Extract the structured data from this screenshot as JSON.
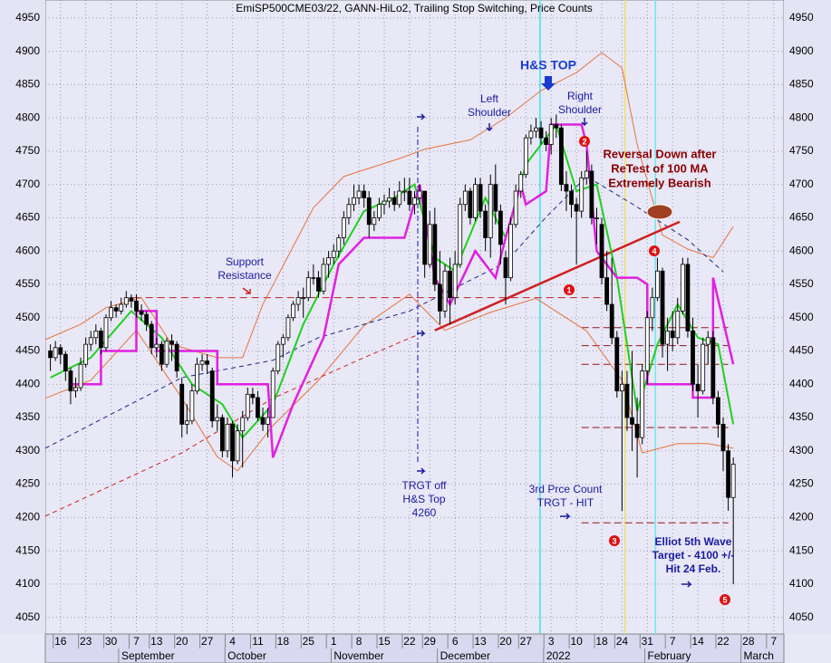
{
  "chart_data": {
    "type": "candlestick",
    "title": "EmiSP500CME03/22, GANN-HiLo2, Trailing Stop Switching, Price Counts",
    "ylim": [
      4025,
      4977
    ],
    "yticks": [
      4050,
      4100,
      4150,
      4200,
      4250,
      4300,
      4350,
      4400,
      4450,
      4500,
      4550,
      4600,
      4650,
      4700,
      4750,
      4800,
      4850,
      4900,
      4950
    ],
    "xlim": [
      -1,
      145
    ],
    "xticks": [
      {
        "value": 2,
        "label": "16"
      },
      {
        "value": 7,
        "label": "23"
      },
      {
        "value": 12,
        "label": "30"
      },
      {
        "value": 17,
        "label": "7"
      },
      {
        "value": 21,
        "label": "13"
      },
      {
        "value": 26,
        "label": "20"
      },
      {
        "value": 31,
        "label": "27"
      },
      {
        "value": 36,
        "label": "4"
      },
      {
        "value": 41,
        "label": "11"
      },
      {
        "value": 46,
        "label": "18"
      },
      {
        "value": 51,
        "label": "25"
      },
      {
        "value": 56,
        "label": "1"
      },
      {
        "value": 61,
        "label": "8"
      },
      {
        "value": 66,
        "label": "15"
      },
      {
        "value": 71,
        "label": "22"
      },
      {
        "value": 75,
        "label": "29"
      },
      {
        "value": 80,
        "label": "6"
      },
      {
        "value": 85,
        "label": "13"
      },
      {
        "value": 90,
        "label": "20"
      },
      {
        "value": 94,
        "label": "27"
      },
      {
        "value": 99,
        "label": "3"
      },
      {
        "value": 104,
        "label": "10"
      },
      {
        "value": 109,
        "label": "18"
      },
      {
        "value": 113,
        "label": "24"
      },
      {
        "value": 118,
        "label": "31"
      },
      {
        "value": 123,
        "label": "7"
      },
      {
        "value": 128,
        "label": "14"
      },
      {
        "value": 133,
        "label": "22"
      },
      {
        "value": 138,
        "label": "28"
      },
      {
        "value": 143,
        "label": "7"
      }
    ],
    "months": [
      {
        "value": 13.5,
        "label": "September"
      },
      {
        "value": 34.5,
        "label": "October"
      },
      {
        "value": 55.5,
        "label": "November"
      },
      {
        "value": 76.5,
        "label": "December"
      },
      {
        "value": 97.5,
        "label": "2022"
      },
      {
        "value": 117.5,
        "label": "February"
      },
      {
        "value": 136.5,
        "label": "March"
      }
    ],
    "grid": true,
    "up_color": "#ffffff",
    "down_color": "#000000",
    "candles": [
      [
        4450,
        4460,
        4420,
        4440
      ],
      [
        4440,
        4465,
        4435,
        4455
      ],
      [
        4455,
        4460,
        4430,
        4445
      ],
      [
        4445,
        4450,
        4405,
        4420
      ],
      [
        4420,
        4425,
        4370,
        4390
      ],
      [
        4390,
        4410,
        4380,
        4395
      ],
      [
        4395,
        4440,
        4390,
        4430
      ],
      [
        4430,
        4470,
        4425,
        4460
      ],
      [
        4460,
        4480,
        4450,
        4470
      ],
      [
        4470,
        4490,
        4460,
        4480
      ],
      [
        4480,
        4485,
        4445,
        4455
      ],
      [
        4455,
        4505,
        4450,
        4500
      ],
      [
        4500,
        4525,
        4495,
        4515
      ],
      [
        4515,
        4520,
        4500,
        4510
      ],
      [
        4510,
        4530,
        4505,
        4520
      ],
      [
        4520,
        4540,
        4515,
        4530
      ],
      [
        4530,
        4535,
        4515,
        4525
      ],
      [
        4525,
        4535,
        4500,
        4510
      ],
      [
        4510,
        4520,
        4495,
        4505
      ],
      [
        4505,
        4510,
        4480,
        4490
      ],
      [
        4490,
        4495,
        4445,
        4455
      ],
      [
        4455,
        4470,
        4440,
        4460
      ],
      [
        4460,
        4465,
        4420,
        4430
      ],
      [
        4430,
        4470,
        4425,
        4465
      ],
      [
        4465,
        4475,
        4435,
        4460
      ],
      [
        4460,
        4465,
        4410,
        4420
      ],
      [
        4400,
        4410,
        4320,
        4340
      ],
      [
        4340,
        4370,
        4325,
        4345
      ],
      [
        4345,
        4400,
        4340,
        4390
      ],
      [
        4390,
        4440,
        4385,
        4430
      ],
      [
        4430,
        4445,
        4420,
        4435
      ],
      [
        4435,
        4445,
        4415,
        4430
      ],
      [
        4420,
        4425,
        4335,
        4345
      ],
      [
        4345,
        4370,
        4330,
        4350
      ],
      [
        4350,
        4355,
        4290,
        4300
      ],
      [
        4300,
        4350,
        4290,
        4340
      ],
      [
        4340,
        4345,
        4260,
        4285
      ],
      [
        4285,
        4340,
        4280,
        4330
      ],
      [
        4330,
        4360,
        4275,
        4350
      ],
      [
        4350,
        4395,
        4345,
        4385
      ],
      [
        4385,
        4395,
        4370,
        4380
      ],
      [
        4380,
        4390,
        4345,
        4350
      ],
      [
        4350,
        4365,
        4330,
        4340
      ],
      [
        4340,
        4365,
        4320,
        4350
      ],
      [
        4350,
        4425,
        4350,
        4420
      ],
      [
        4420,
        4465,
        4415,
        4460
      ],
      [
        4460,
        4475,
        4440,
        4470
      ],
      [
        4470,
        4505,
        4465,
        4500
      ],
      [
        4500,
        4525,
        4495,
        4520
      ],
      [
        4520,
        4540,
        4510,
        4530
      ],
      [
        4530,
        4545,
        4500,
        4530
      ],
      [
        4530,
        4570,
        4525,
        4560
      ],
      [
        4560,
        4580,
        4550,
        4560
      ],
      [
        4560,
        4570,
        4530,
        4540
      ],
      [
        4540,
        4590,
        4535,
        4580
      ],
      [
        4580,
        4600,
        4560,
        4590
      ],
      [
        4590,
        4610,
        4580,
        4600
      ],
      [
        4600,
        4625,
        4590,
        4620
      ],
      [
        4620,
        4660,
        4610,
        4650
      ],
      [
        4650,
        4680,
        4640,
        4670
      ],
      [
        4670,
        4700,
        4660,
        4680
      ],
      [
        4680,
        4700,
        4670,
        4690
      ],
      [
        4690,
        4700,
        4665,
        4680
      ],
      [
        4680,
        4690,
        4620,
        4640
      ],
      [
        4640,
        4660,
        4630,
        4650
      ],
      [
        4650,
        4680,
        4645,
        4670
      ],
      [
        4670,
        4685,
        4655,
        4675
      ],
      [
        4675,
        4695,
        4665,
        4680
      ],
      [
        4680,
        4690,
        4660,
        4670
      ],
      [
        4670,
        4705,
        4665,
        4690
      ],
      [
        4690,
        4710,
        4675,
        4690
      ],
      [
        4690,
        4710,
        4660,
        4670
      ],
      [
        4670,
        4690,
        4655,
        4680
      ],
      [
        4680,
        4700,
        4670,
        4690
      ],
      [
        4690,
        4690,
        4560,
        4580
      ],
      [
        4580,
        4660,
        4575,
        4640
      ],
      [
        4640,
        4665,
        4540,
        4550
      ],
      [
        4550,
        4600,
        4490,
        4510
      ],
      [
        4510,
        4580,
        4500,
        4570
      ],
      [
        4570,
        4590,
        4490,
        4530
      ],
      [
        4530,
        4600,
        4520,
        4580
      ],
      [
        4580,
        4680,
        4575,
        4670
      ],
      [
        4670,
        4700,
        4660,
        4690
      ],
      [
        4690,
        4695,
        4640,
        4650
      ],
      [
        4650,
        4710,
        4645,
        4700
      ],
      [
        4700,
        4710,
        4650,
        4660
      ],
      [
        4660,
        4670,
        4600,
        4620
      ],
      [
        4620,
        4715,
        4590,
        4700
      ],
      [
        4700,
        4730,
        4640,
        4660
      ],
      [
        4660,
        4670,
        4580,
        4610
      ],
      [
        4590,
        4600,
        4520,
        4560
      ],
      [
        4560,
        4650,
        4555,
        4640
      ],
      [
        4640,
        4700,
        4635,
        4690
      ],
      [
        4690,
        4720,
        4680,
        4715
      ],
      [
        4715,
        4775,
        4710,
        4770
      ],
      [
        4770,
        4790,
        4760,
        4780
      ],
      [
        4780,
        4800,
        4770,
        4785
      ],
      [
        4785,
        4795,
        4760,
        4770
      ],
      [
        4770,
        4780,
        4750,
        4760
      ],
      [
        4760,
        4800,
        4745,
        4790
      ],
      [
        4790,
        4805,
        4770,
        4785
      ],
      [
        4785,
        4790,
        4690,
        4700
      ],
      [
        4700,
        4720,
        4660,
        4690
      ],
      [
        4690,
        4700,
        4650,
        4670
      ],
      [
        4670,
        4680,
        4580,
        4660
      ],
      [
        4660,
        4720,
        4650,
        4710
      ],
      [
        4710,
        4750,
        4700,
        4720
      ],
      [
        4720,
        4730,
        4640,
        4650
      ],
      [
        4650,
        4665,
        4610,
        4650
      ],
      [
        4640,
        4650,
        4550,
        4560
      ],
      [
        4560,
        4600,
        4510,
        4520
      ],
      [
        4520,
        4590,
        4460,
        4470
      ],
      [
        4470,
        4480,
        4380,
        4390
      ],
      [
        4390,
        4420,
        4210,
        4400
      ],
      [
        4400,
        4420,
        4330,
        4350
      ],
      [
        4350,
        4450,
        4300,
        4340
      ],
      [
        4340,
        4380,
        4260,
        4320
      ],
      [
        4320,
        4430,
        4310,
        4420
      ],
      [
        4420,
        4510,
        4400,
        4500
      ],
      [
        4500,
        4545,
        4480,
        4530
      ],
      [
        4530,
        4590,
        4525,
        4570
      ],
      [
        4570,
        4575,
        4440,
        4460
      ],
      [
        4460,
        4500,
        4420,
        4480
      ],
      [
        4480,
        4510,
        4450,
        4470
      ],
      [
        4470,
        4530,
        4460,
        4510
      ],
      [
        4510,
        4590,
        4505,
        4580
      ],
      [
        4580,
        4590,
        4470,
        4480
      ],
      [
        4480,
        4500,
        4390,
        4400
      ],
      [
        4400,
        4430,
        4350,
        4390
      ],
      [
        4390,
        4470,
        4385,
        4460
      ],
      [
        4460,
        4480,
        4430,
        4470
      ],
      [
        4470,
        4480,
        4370,
        4380
      ],
      [
        4380,
        4390,
        4320,
        4340
      ],
      [
        4340,
        4350,
        4270,
        4300
      ],
      [
        4300,
        4310,
        4210,
        4230
      ],
      [
        4230,
        4290,
        4100,
        4280
      ]
    ],
    "lines": [
      {
        "color": "#e8743c",
        "x": [
          -1,
          6,
          11,
          18,
          24,
          33,
          38,
          42,
          52,
          58,
          69,
          74,
          83,
          90,
          97,
          104,
          109,
          113,
          116,
          121,
          126,
          131,
          135
        ],
        "values": [
          4467,
          4490,
          4515,
          4530,
          4460,
          4440,
          4440,
          4520,
          4665,
          4712,
          4739,
          4753,
          4767,
          4800,
          4841,
          4868,
          4898,
          4875,
          4760,
          4624,
          4603,
          4590,
          4637
        ]
      },
      {
        "color": "#e8743c",
        "x": [
          -1,
          8,
          17,
          26,
          33,
          37,
          44,
          53,
          62,
          71,
          78,
          87,
          96,
          106,
          113,
          117,
          124,
          130,
          135
        ],
        "values": [
          4379,
          4406,
          4481,
          4379,
          4291,
          4270,
          4338,
          4406,
          4488,
          4535,
          4481,
          4508,
          4529,
          4480,
          4406,
          4297,
          4311,
          4311,
          4304
        ]
      },
      {
        "color": "#1a2a80",
        "dash": true,
        "x": [
          -1,
          26,
          44,
          53,
          71,
          90,
          98,
          106,
          115,
          126,
          133
        ],
        "values": [
          4304,
          4410,
          4436,
          4470,
          4510,
          4583,
          4651,
          4712,
          4671,
          4617,
          4569
        ]
      },
      {
        "color": "#d02020",
        "dash": true,
        "x": [
          -1,
          26,
          44,
          62,
          72.5
        ],
        "values": [
          4202,
          4297,
          4379,
          4440,
          4474
        ]
      },
      {
        "color": "#d02020",
        "width": 2.5,
        "x": [
          76,
          124.4
        ],
        "values": [
          4481,
          4644
        ]
      },
      {
        "color": "#20d020",
        "width": 2,
        "x": [
          0,
          8,
          16,
          22,
          28,
          34,
          38,
          44,
          50,
          56,
          62,
          68,
          72,
          76,
          80,
          86,
          90,
          94,
          100,
          104,
          108,
          112,
          116,
          120,
          124,
          128,
          132,
          135
        ],
        "values": [
          4410,
          4440,
          4510,
          4470,
          4400,
          4370,
          4320,
          4370,
          4490,
          4580,
          4660,
          4680,
          4700,
          4590,
          4570,
          4680,
          4620,
          4730,
          4790,
          4690,
          4700,
          4560,
          4360,
          4460,
          4520,
          4470,
          4460,
          4340
        ]
      },
      {
        "color": "#e020e0",
        "width": 2.5,
        "x": [
          4,
          10,
          10,
          17,
          17,
          21,
          21,
          33,
          33,
          43,
          44,
          48,
          54,
          57,
          62,
          70,
          73,
          76,
          79,
          84,
          88,
          90,
          93,
          94,
          98,
          99,
          105,
          106,
          108,
          112,
          116,
          118,
          118,
          127,
          127,
          131,
          131,
          135
        ],
        "values": [
          4400,
          4400,
          4450,
          4450,
          4510,
          4510,
          4450,
          4450,
          4400,
          4400,
          4290,
          4370,
          4470,
          4580,
          4620,
          4620,
          4700,
          4560,
          4520,
          4600,
          4560,
          4620,
          4700,
          4670,
          4690,
          4790,
          4790,
          4760,
          4600,
          4560,
          4560,
          4550,
          4400,
          4400,
          4380,
          4380,
          4560,
          4430
        ]
      }
    ],
    "support_level": 4530,
    "count_levels": [
      4485,
      4458,
      4430,
      4335,
      4192
    ],
    "annotations": [
      {
        "lines": [
          "H&S TOP"
        ]
      },
      {
        "lines": [
          "Left",
          "Shoulder"
        ]
      },
      {
        "lines": [
          "Right",
          "Shoulder"
        ]
      },
      {
        "lines": [
          "Reversal Down after",
          "ReTest of 100 MA",
          "Extremely Bearish"
        ]
      },
      {
        "lines": [
          "Support",
          "Resistance"
        ]
      },
      {
        "lines": [
          "TRGT off",
          "H&S Top",
          "4260"
        ]
      },
      {
        "lines": [
          "3rd Prce Count",
          "TRGT - HIT"
        ]
      },
      {
        "lines": [
          "Elliot 5th Wave",
          "Target - 4100 +/-",
          "Hit 24 Feb."
        ]
      }
    ],
    "wave_markers": [
      "1",
      "2",
      "3",
      "4",
      "5"
    ]
  }
}
